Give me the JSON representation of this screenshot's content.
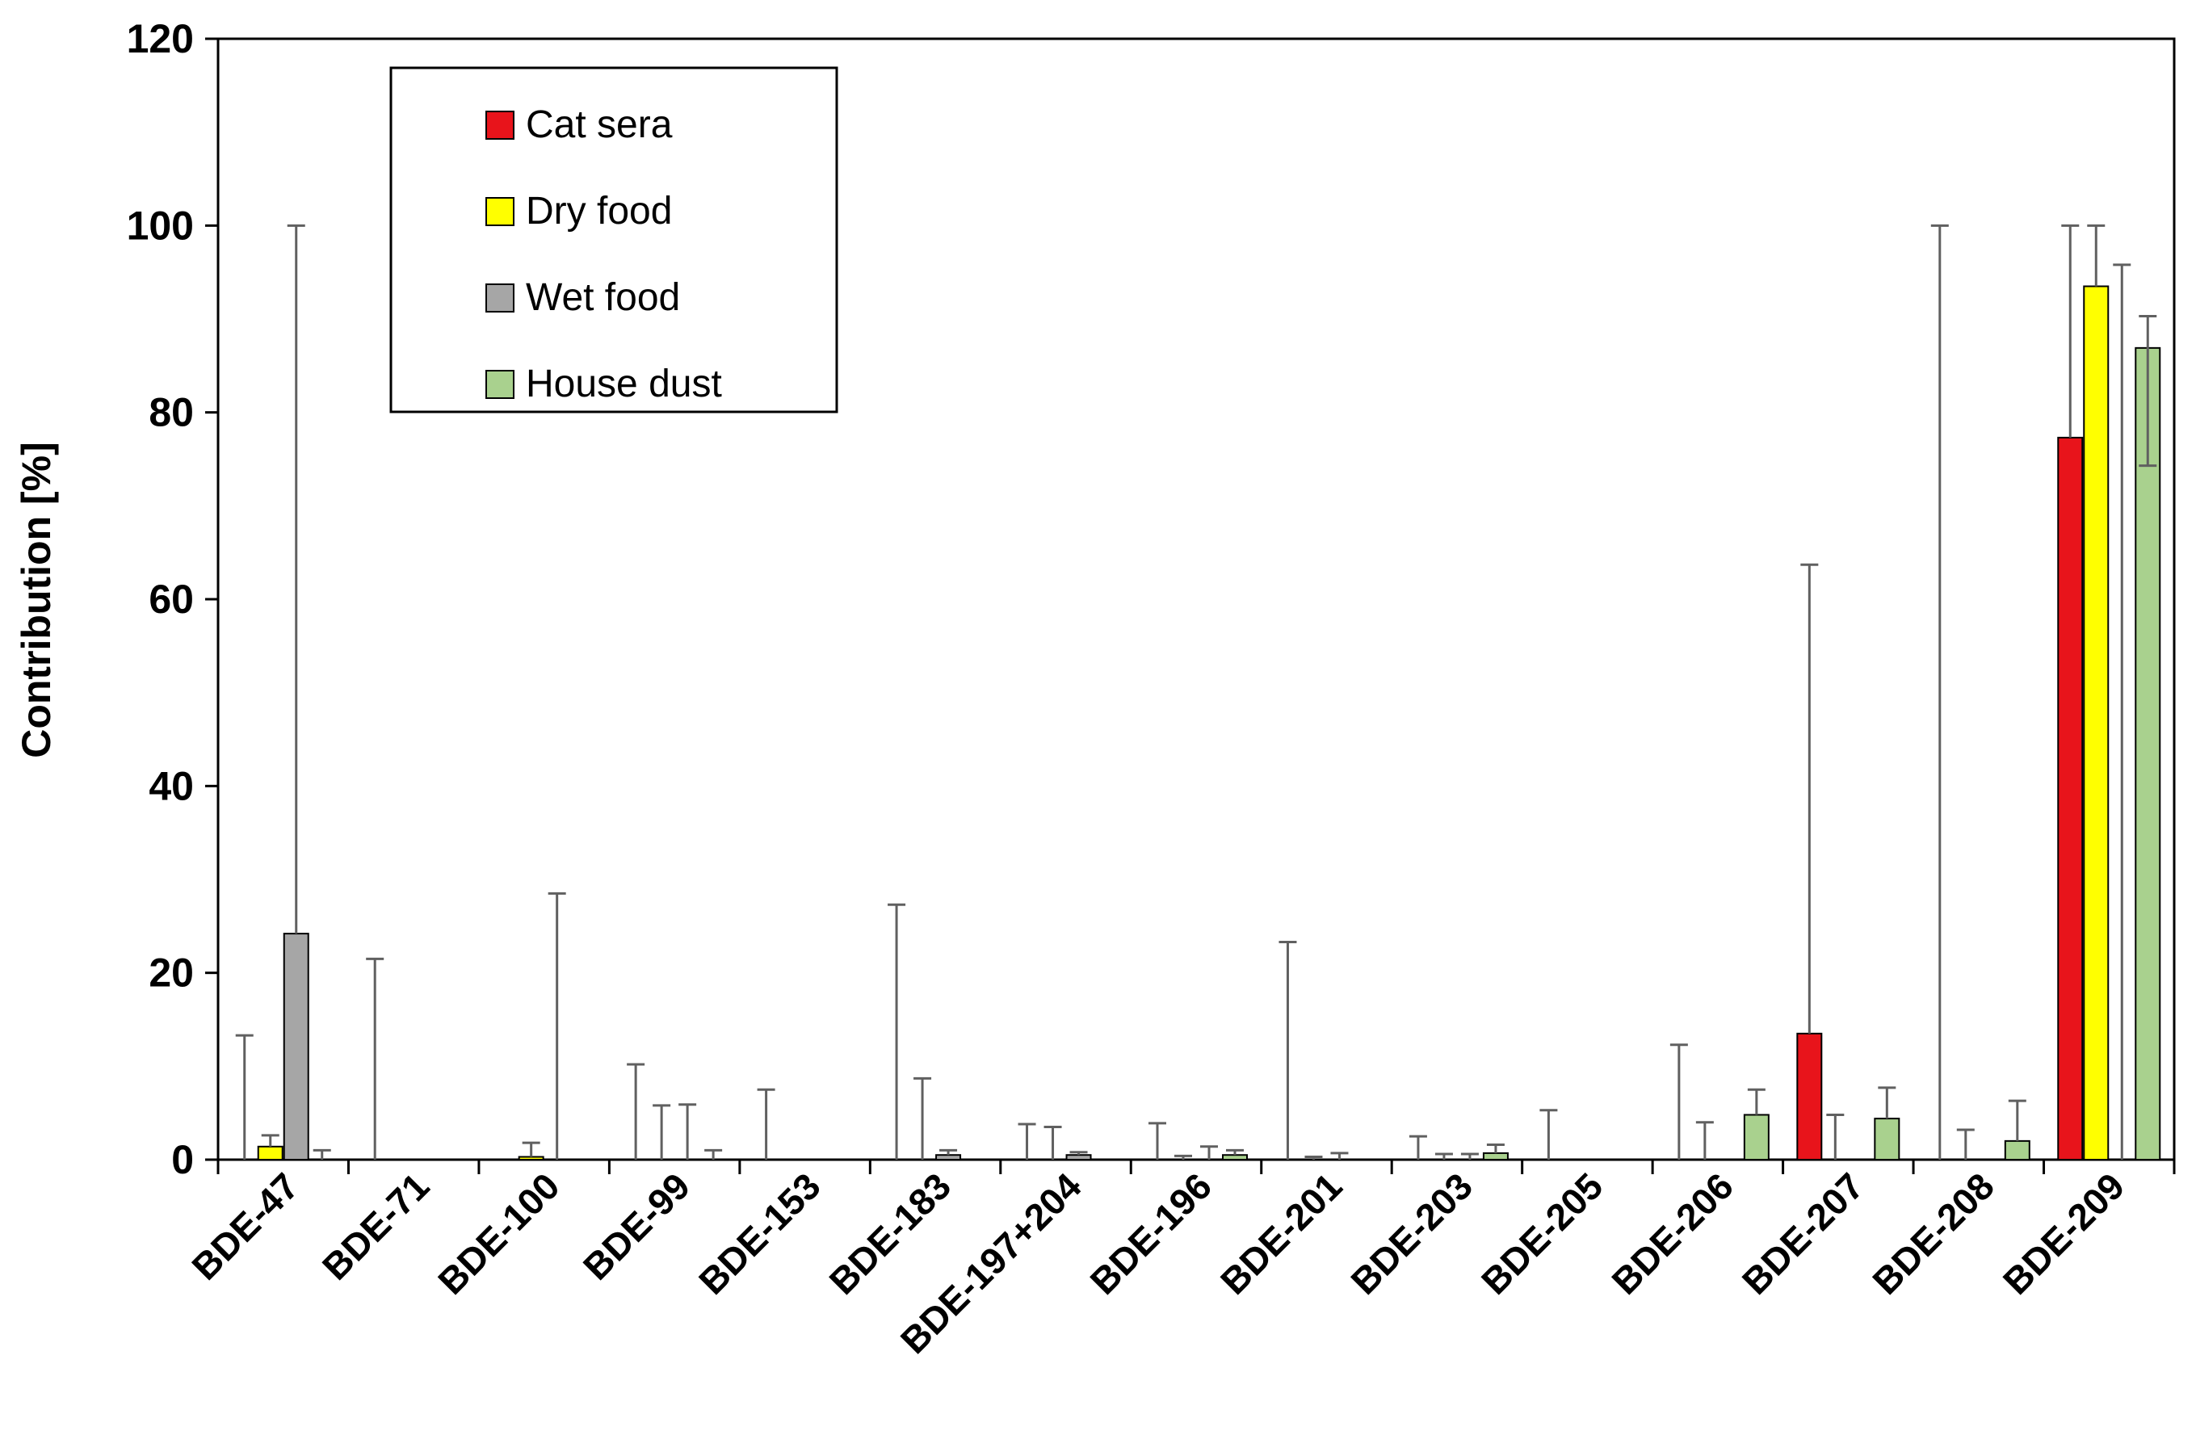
{
  "chart_data": {
    "type": "bar",
    "title": "",
    "xlabel": "",
    "ylabel": "Contribution [%]",
    "ylim": [
      0,
      120
    ],
    "yticks": [
      "0",
      "20",
      "40",
      "60",
      "80",
      "100",
      "120"
    ],
    "grid": false,
    "legend_position": "top-left",
    "categories": [
      "BDE-47",
      "BDE-71",
      "BDE-100",
      "BDE-99",
      "BDE-153",
      "BDE-183",
      "BDE-197+204",
      "BDE-196",
      "BDE-201",
      "BDE-203",
      "BDE-205",
      "BDE-206",
      "BDE-207",
      "BDE-208",
      "BDE-209"
    ],
    "series": [
      {
        "name": "Cat sera",
        "color": "#e8141b",
        "values": [
          0,
          0,
          0,
          0,
          0,
          0,
          0,
          0,
          0,
          0,
          0,
          0,
          13.5,
          0,
          77.3
        ],
        "err_upper": [
          13.3,
          21.5,
          0,
          10.2,
          7.5,
          27.3,
          3.8,
          3.9,
          23.3,
          2.5,
          5.3,
          12.3,
          63.7,
          100,
          100
        ]
      },
      {
        "name": "Dry food",
        "color": "#ffff00",
        "values": [
          1.4,
          0,
          0.3,
          0,
          0,
          0,
          0,
          0,
          0,
          0,
          0,
          0,
          0,
          0,
          93.5
        ],
        "err_upper": [
          2.6,
          0,
          1.8,
          5.8,
          0,
          8.7,
          3.5,
          0.4,
          0.3,
          0.6,
          0,
          4.0,
          4.8,
          3.2,
          100
        ]
      },
      {
        "name": "Wet food",
        "color": "#a6a6a6",
        "values": [
          24.2,
          0,
          0,
          0,
          0,
          0.5,
          0.5,
          0,
          0,
          0,
          0,
          0,
          0,
          0,
          0
        ],
        "err_upper": [
          100,
          0,
          28.5,
          5.9,
          0,
          1.0,
          0.8,
          1.4,
          0.7,
          0.6,
          0,
          0,
          0,
          0,
          95.8
        ]
      },
      {
        "name": "House dust",
        "color": "#a9d18e",
        "values": [
          0,
          0,
          0,
          0,
          0,
          0,
          0,
          0.5,
          0,
          0.7,
          0,
          4.8,
          4.4,
          2.0,
          86.9
        ],
        "err_upper": [
          1.0,
          0,
          0,
          1.0,
          0,
          0,
          0,
          1.0,
          0,
          1.6,
          0,
          7.5,
          7.7,
          6.3,
          90.3
        ],
        "err_lower": [
          0,
          0,
          0,
          0,
          0,
          0,
          0,
          0,
          0,
          0,
          0,
          0,
          0,
          0,
          74.3
        ]
      }
    ]
  }
}
